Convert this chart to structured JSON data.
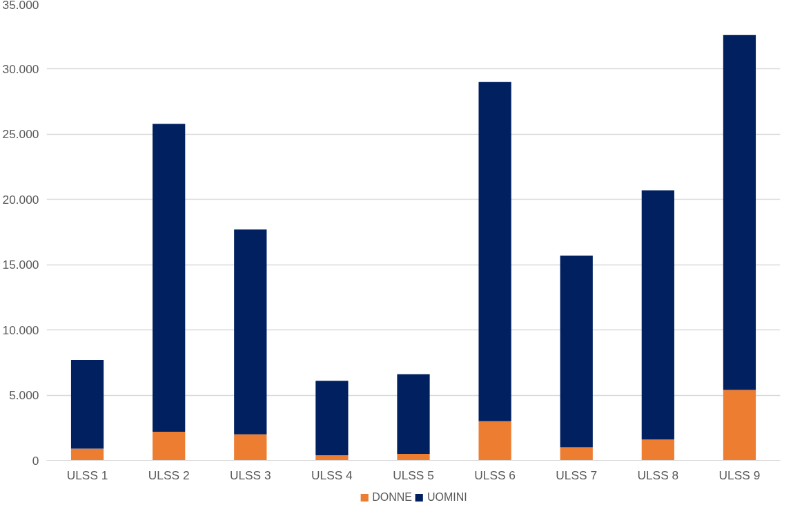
{
  "chart_data": {
    "type": "bar",
    "stacked": true,
    "categories": [
      "ULSS 1",
      "ULSS 2",
      "ULSS 3",
      "ULSS 4",
      "ULSS 5",
      "ULSS 6",
      "ULSS 7",
      "ULSS 8",
      "ULSS 9"
    ],
    "series": [
      {
        "name": "DONNE",
        "color": "#ed7d31",
        "values": [
          900,
          2200,
          2000,
          400,
          500,
          3000,
          1000,
          1600,
          5400
        ]
      },
      {
        "name": "UOMINI",
        "color": "#002060",
        "values": [
          6800,
          23600,
          15700,
          5700,
          6100,
          26000,
          14700,
          19100,
          27200
        ]
      }
    ],
    "ylim": [
      0,
      35000
    ],
    "yticks": [
      0,
      {
        "value": 5000,
        "label": "5.000"
      },
      {
        "value": 10000,
        "label": "10.000"
      },
      {
        "value": 15000,
        "label": "15.000"
      },
      {
        "value": 20000,
        "label": "20.000"
      },
      {
        "value": 25000,
        "label": "25.000"
      },
      {
        "value": 30000,
        "label": "30.000"
      },
      {
        "value": 35000,
        "label": "35.000"
      }
    ],
    "grid": "y",
    "legend": "bottom"
  }
}
